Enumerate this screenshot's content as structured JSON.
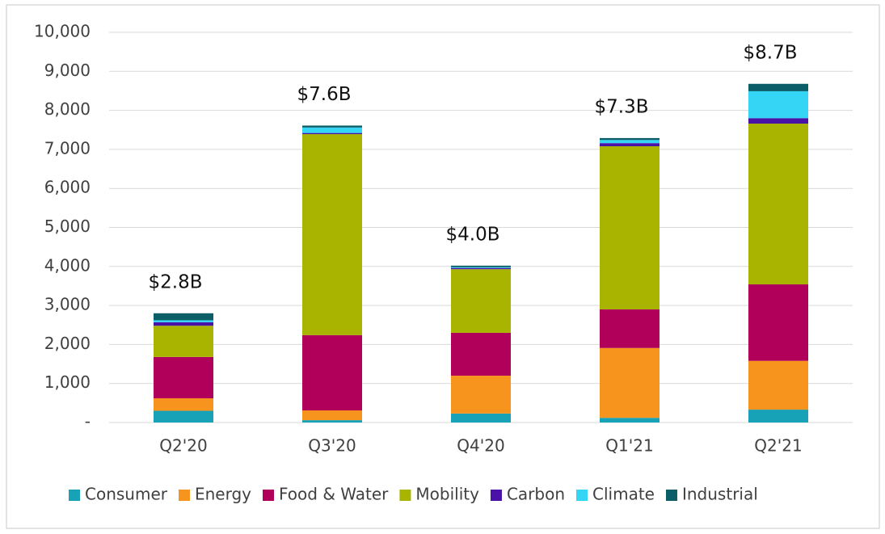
{
  "chart_data": {
    "type": "stacked_bar",
    "categories": [
      "Q2'20",
      "Q3'20",
      "Q4'20",
      "Q1'21",
      "Q2'21"
    ],
    "series": [
      {
        "name": "Consumer",
        "color": "#17a2b8",
        "values": [
          300,
          60,
          230,
          120,
          330
        ]
      },
      {
        "name": "Energy",
        "color": "#f7941d",
        "values": [
          320,
          250,
          970,
          1790,
          1250
        ]
      },
      {
        "name": "Food & Water",
        "color": "#b0005a",
        "values": [
          1060,
          1930,
          1100,
          990,
          1960
        ]
      },
      {
        "name": "Mobility",
        "color": "#a8b400",
        "values": [
          800,
          5150,
          1630,
          4180,
          4120
        ]
      },
      {
        "name": "Carbon",
        "color": "#4b12a8",
        "values": [
          90,
          30,
          30,
          80,
          140
        ]
      },
      {
        "name": "Climate",
        "color": "#35d6f5",
        "values": [
          50,
          140,
          20,
          80,
          690
        ]
      },
      {
        "name": "Industrial",
        "color": "#0b5e68",
        "values": [
          180,
          50,
          40,
          50,
          190
        ]
      }
    ],
    "annotations": [
      "$2.8B",
      "$7.6B",
      "$4.0B",
      "$7.3B",
      "$8.7B"
    ],
    "ylim": [
      0,
      10000
    ],
    "yticks": [
      {
        "value": 0,
        "label": "-"
      },
      {
        "value": 1000,
        "label": "1,000"
      },
      {
        "value": 2000,
        "label": "2,000"
      },
      {
        "value": 3000,
        "label": "3,000"
      },
      {
        "value": 4000,
        "label": "4,000"
      },
      {
        "value": 5000,
        "label": "5,000"
      },
      {
        "value": 6000,
        "label": "6,000"
      },
      {
        "value": 7000,
        "label": "7,000"
      },
      {
        "value": 8000,
        "label": "8,000"
      },
      {
        "value": 9000,
        "label": "9,000"
      },
      {
        "value": 10000,
        "label": "10,000"
      }
    ],
    "grid": true,
    "legend": "bottom"
  }
}
